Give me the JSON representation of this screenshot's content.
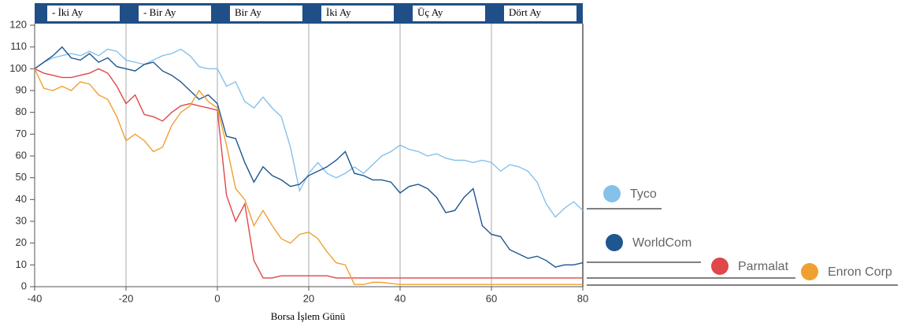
{
  "chart_data": {
    "type": "line",
    "x_label": "Borsa İşlem Günü",
    "period_labels": [
      "- İki Ay",
      "- Bir Ay",
      "Bir Ay",
      "İki Ay",
      "Üç Ay",
      "Dört Ay"
    ],
    "x": [
      -40,
      -38,
      -36,
      -34,
      -32,
      -30,
      -28,
      -26,
      -24,
      -22,
      -20,
      -18,
      -16,
      -14,
      -12,
      -10,
      -8,
      -6,
      -4,
      -2,
      0,
      2,
      4,
      6,
      8,
      10,
      12,
      14,
      16,
      18,
      20,
      22,
      24,
      26,
      28,
      30,
      32,
      34,
      36,
      38,
      40,
      42,
      44,
      46,
      48,
      50,
      52,
      54,
      56,
      58,
      60,
      62,
      64,
      66,
      68,
      70,
      72,
      74,
      76,
      78,
      80
    ],
    "xlim": [
      -40,
      80
    ],
    "xticks": [
      -40,
      -20,
      0,
      20,
      40,
      60,
      80
    ],
    "ylim": [
      0,
      120
    ],
    "yticks": [
      0,
      10,
      20,
      30,
      40,
      50,
      60,
      70,
      80,
      90,
      100,
      110,
      120
    ],
    "grid": true,
    "series": [
      {
        "name": "Tyco",
        "color": "#85c1e9",
        "values": [
          100,
          103,
          105,
          106,
          107,
          106,
          108,
          106,
          109,
          108,
          104,
          103,
          102,
          104,
          106,
          107,
          109,
          106,
          101,
          100,
          100,
          92,
          94,
          85,
          82,
          87,
          82,
          78,
          64,
          44,
          52,
          57,
          52,
          50,
          52,
          55,
          52,
          56,
          60,
          62,
          65,
          63,
          62,
          60,
          61,
          59,
          58,
          58,
          57,
          58,
          57,
          53,
          56,
          55,
          53,
          48,
          38,
          32,
          36,
          39,
          35
        ]
      },
      {
        "name": "WorldCom",
        "color": "#1f5690",
        "values": [
          100,
          103,
          106,
          110,
          105,
          104,
          107,
          103,
          105,
          101,
          100,
          99,
          102,
          103,
          99,
          97,
          94,
          90,
          86,
          88,
          84,
          69,
          68,
          57,
          48,
          55,
          51,
          49,
          46,
          47,
          51,
          53,
          55,
          58,
          62,
          52,
          51,
          49,
          49,
          48,
          43,
          46,
          47,
          45,
          41,
          34,
          35,
          41,
          45,
          28,
          24,
          23,
          17,
          15,
          13,
          14,
          12,
          9,
          10,
          10,
          11
        ]
      },
      {
        "name": "Parmalat",
        "color": "#e0464a",
        "values": [
          100,
          98,
          97,
          96,
          96,
          97,
          98,
          100,
          98,
          92,
          84,
          88,
          79,
          78,
          76,
          80,
          83,
          84,
          83,
          82,
          81,
          42,
          30,
          38,
          12,
          4,
          4,
          5,
          5,
          5,
          5,
          5,
          5,
          4,
          4,
          4,
          4,
          4,
          4,
          4,
          4,
          4,
          4,
          4,
          4,
          4,
          4,
          4,
          4,
          4,
          4,
          4,
          4,
          4,
          4,
          4,
          4,
          4,
          4,
          4,
          4
        ]
      },
      {
        "name": "Enron Corp",
        "color": "#f0a030",
        "values": [
          100,
          91,
          90,
          92,
          90,
          94,
          93,
          88,
          86,
          78,
          67,
          70,
          67,
          62,
          64,
          74,
          80,
          83,
          90,
          85,
          82,
          65,
          45,
          40,
          28,
          35,
          28,
          22,
          20,
          24,
          25,
          22,
          16,
          11,
          10,
          1,
          1,
          2,
          2,
          1.5,
          1,
          1,
          1,
          1,
          1,
          1,
          1,
          1,
          1,
          1,
          1,
          1,
          1,
          1,
          1,
          1,
          1,
          1,
          1,
          1,
          1
        ]
      }
    ]
  }
}
